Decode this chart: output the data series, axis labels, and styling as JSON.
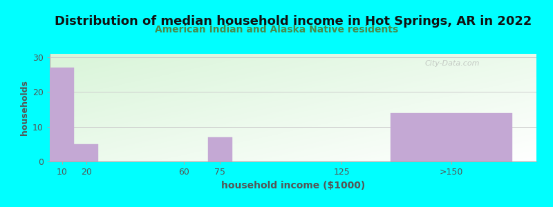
{
  "title": "Distribution of median household income in Hot Springs, AR in 2022",
  "subtitle": "American Indian and Alaska Native residents",
  "xlabel": "household income ($1000)",
  "ylabel": "households",
  "categories": [
    "10",
    "20",
    "60",
    "75",
    "125",
    ">150"
  ],
  "x_positions": [
    10,
    20,
    60,
    75,
    125,
    170
  ],
  "bar_widths": [
    10,
    10,
    10,
    10,
    10,
    50
  ],
  "values": [
    27,
    5,
    0,
    7,
    0,
    14
  ],
  "bar_color": "#c4a8d4",
  "bar_edge_color": "#c4a8d4",
  "background_color": "#00ffff",
  "plot_bg_color_topleft": "#d8f0d8",
  "plot_bg_color_topright": "#ffffff",
  "plot_bg_color_bottomleft": "#c8e8c8",
  "yticks": [
    0,
    10,
    20,
    30
  ],
  "ylim": [
    0,
    31
  ],
  "xlim": [
    5,
    205
  ],
  "xtick_positions": [
    10,
    20,
    60,
    75,
    125,
    170
  ],
  "xtick_labels": [
    "10",
    "20",
    "60",
    "75",
    "125",
    ">150"
  ],
  "title_fontsize": 13,
  "subtitle_fontsize": 10,
  "subtitle_color": "#4a8a4a",
  "axis_label_color": "#555555",
  "tick_color": "#555555",
  "watermark": "City-Data.com"
}
